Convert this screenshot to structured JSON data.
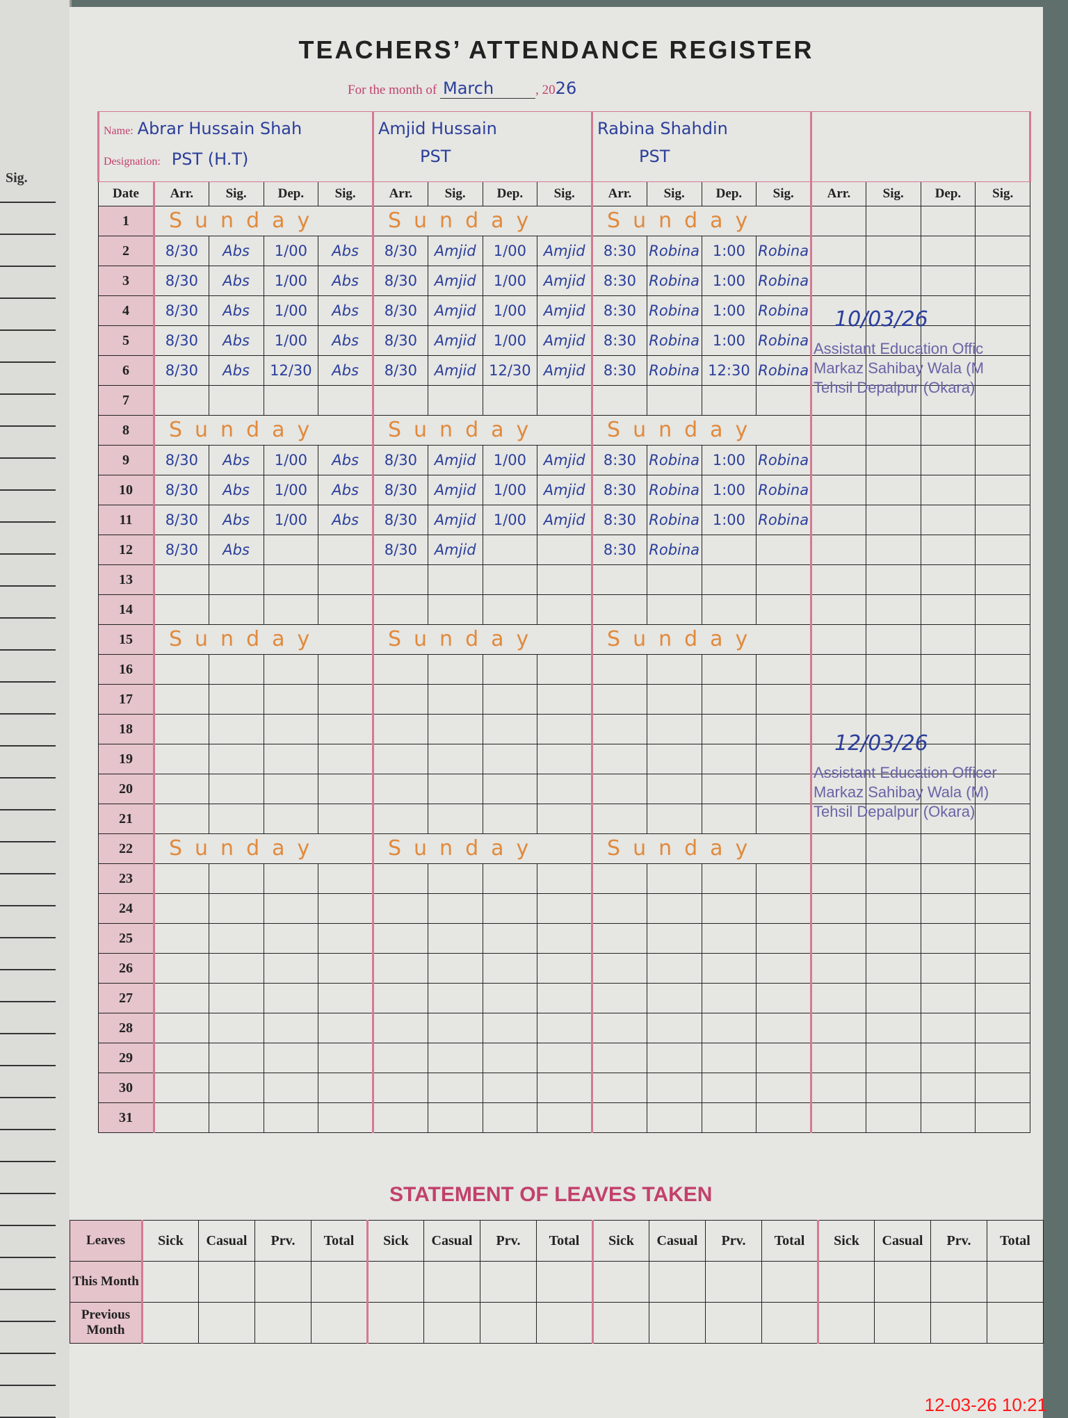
{
  "left_page": {
    "sig_label": "Sig."
  },
  "title": "TEACHERS’ ATTENDANCE REGISTER",
  "month": {
    "label": "For the month of",
    "value": "March",
    "year_prefix": ", 20",
    "year": "26"
  },
  "labels": {
    "name": "Name:",
    "designation": "Designation:",
    "date": "Date",
    "columns": [
      "Arr.",
      "Sig.",
      "Dep.",
      "Sig."
    ]
  },
  "sunday_text": "Sunday",
  "sundays": [
    1,
    8,
    15,
    22
  ],
  "teachers": [
    {
      "name": "Abrar Hussain Shah",
      "designation": "PST (H.T)",
      "entries": {
        "2": [
          "8/30",
          "Abs",
          "1/00",
          "Abs"
        ],
        "3": [
          "8/30",
          "Abs",
          "1/00",
          "Abs"
        ],
        "4": [
          "8/30",
          "Abs",
          "1/00",
          "Abs"
        ],
        "5": [
          "8/30",
          "Abs",
          "1/00",
          "Abs"
        ],
        "6": [
          "8/30",
          "Abs",
          "12/30",
          "Abs"
        ],
        "9": [
          "8/30",
          "Abs",
          "1/00",
          "Abs"
        ],
        "10": [
          "8/30",
          "Abs",
          "1/00",
          "Abs"
        ],
        "11": [
          "8/30",
          "Abs",
          "1/00",
          "Abs"
        ],
        "12": [
          "8/30",
          "Abs",
          "",
          ""
        ]
      }
    },
    {
      "name": "Amjid Hussain",
      "designation": "PST",
      "entries": {
        "2": [
          "8/30",
          "Amjid",
          "1/00",
          "Amjid"
        ],
        "3": [
          "8/30",
          "Amjid",
          "1/00",
          "Amjid"
        ],
        "4": [
          "8/30",
          "Amjid",
          "1/00",
          "Amjid"
        ],
        "5": [
          "8/30",
          "Amjid",
          "1/00",
          "Amjid"
        ],
        "6": [
          "8/30",
          "Amjid",
          "12/30",
          "Amjid"
        ],
        "9": [
          "8/30",
          "Amjid",
          "1/00",
          "Amjid"
        ],
        "10": [
          "8/30",
          "Amjid",
          "1/00",
          "Amjid"
        ],
        "11": [
          "8/30",
          "Amjid",
          "1/00",
          "Amjid"
        ],
        "12": [
          "8/30",
          "Amjid",
          "",
          ""
        ]
      }
    },
    {
      "name": "Rabina Shahdin",
      "designation": "PST",
      "entries": {
        "2": [
          "8:30",
          "Robina",
          "1:00",
          "Robina"
        ],
        "3": [
          "8:30",
          "Robina",
          "1:00",
          "Robina"
        ],
        "4": [
          "8:30",
          "Robina",
          "1:00",
          "Robina"
        ],
        "5": [
          "8:30",
          "Robina",
          "1:00",
          "Robina"
        ],
        "6": [
          "8:30",
          "Robina",
          "12:30",
          "Robina"
        ],
        "9": [
          "8:30",
          "Robina",
          "1:00",
          "Robina"
        ],
        "10": [
          "8:30",
          "Robina",
          "1:00",
          "Robina"
        ],
        "11": [
          "8:30",
          "Robina",
          "1:00",
          "Robina"
        ],
        "12": [
          "8:30",
          "Robina",
          "",
          ""
        ]
      }
    },
    {
      "name": "",
      "designation": "",
      "entries": {}
    }
  ],
  "verifications": [
    {
      "date": "10/03/26",
      "stamp": [
        "Assistant Education Offic",
        "Markaz Sahibay Wala (M",
        "Tehsil Depalpur (Okara)"
      ]
    },
    {
      "date": "12/03/26",
      "stamp": [
        "Assistant Education Officer",
        "Markaz Sahibay Wala (M)",
        "Tehsil Depalpur (Okara)"
      ]
    }
  ],
  "leaves": {
    "title": "STATEMENT OF LEAVES TAKEN",
    "row_header": "Leaves",
    "columns": [
      "Sick",
      "Casual",
      "Prv.",
      "Total"
    ],
    "rows": [
      "This Month",
      "Previous Month"
    ]
  },
  "photo_timestamp": "12-03-26 10:21",
  "colors": {
    "ink": "#2b3f9a",
    "sunday_ink": "#e08a3c",
    "form_pink": "#c2416a",
    "stamp": "#6a63a6",
    "timestamp": "#ff1a1a"
  }
}
